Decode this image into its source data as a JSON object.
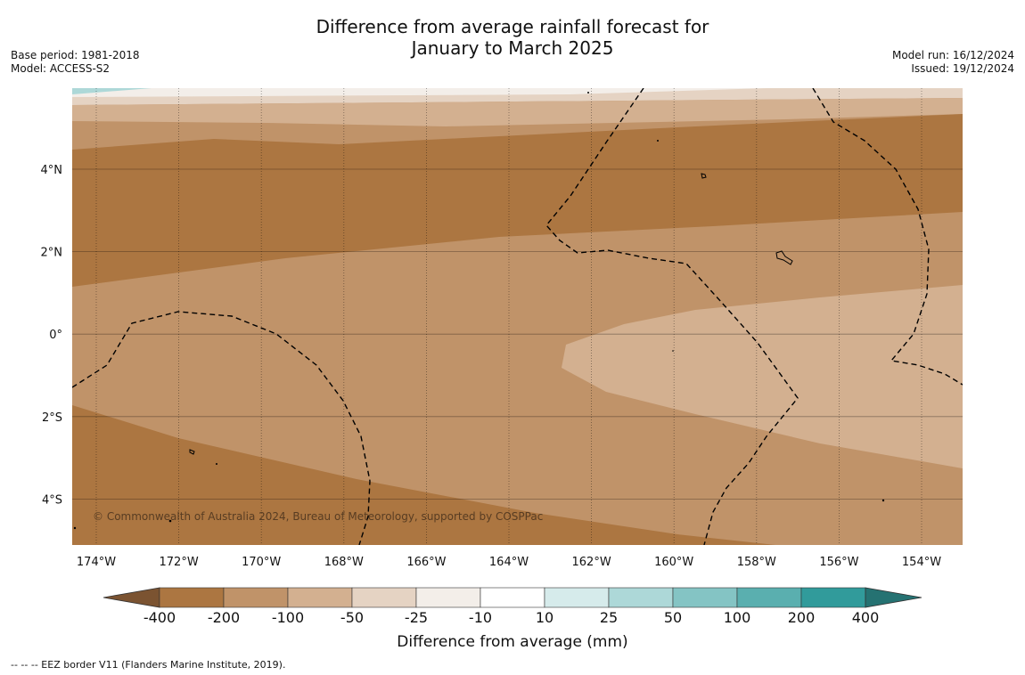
{
  "title": {
    "line1": "Difference from average rainfall forecast for",
    "line2": "January to March 2025"
  },
  "meta_left": {
    "base_period": "Base period: 1981-2018",
    "model": "Model: ACCESS-S2"
  },
  "meta_right": {
    "model_run": "Model run: 16/12/2024",
    "issued": "Issued: 19/12/2024"
  },
  "map": {
    "longitude_ticks": [
      "174°W",
      "172°W",
      "170°W",
      "168°W",
      "166°W",
      "164°W",
      "162°W",
      "160°W",
      "158°W",
      "156°W",
      "154°W"
    ],
    "latitude_ticks": [
      "4°N",
      "2°N",
      "0°",
      "2°S",
      "4°S"
    ],
    "copyright": "© Commonwealth of Australia 2024, Bureau of Meteorology, supported by COSPPac",
    "colors": {
      "dark_brown": "#ac7641",
      "mid_brown": "#c09369",
      "light_brown": "#d3b090",
      "pale_brown": "#e5d3c3",
      "very_pale": "#f3eee9",
      "light_teal": "#add8d8"
    }
  },
  "colorbar": {
    "tick_labels": [
      "-400",
      "-200",
      "-100",
      "-50",
      "-25",
      "-10",
      "10",
      "25",
      "50",
      "100",
      "200",
      "400"
    ],
    "colors": [
      "#7b5331",
      "#ac7641",
      "#c09369",
      "#d3b090",
      "#e5d3c3",
      "#f3eee9",
      "#ffffff",
      "#d6ebeb",
      "#add8d8",
      "#84c4c4",
      "#5aafaf",
      "#319b9b",
      "#257272"
    ],
    "title": "Difference from average (mm)"
  },
  "footer": "--  --  -- EEZ border V11 (Flanders Marine Institute, 2019)."
}
